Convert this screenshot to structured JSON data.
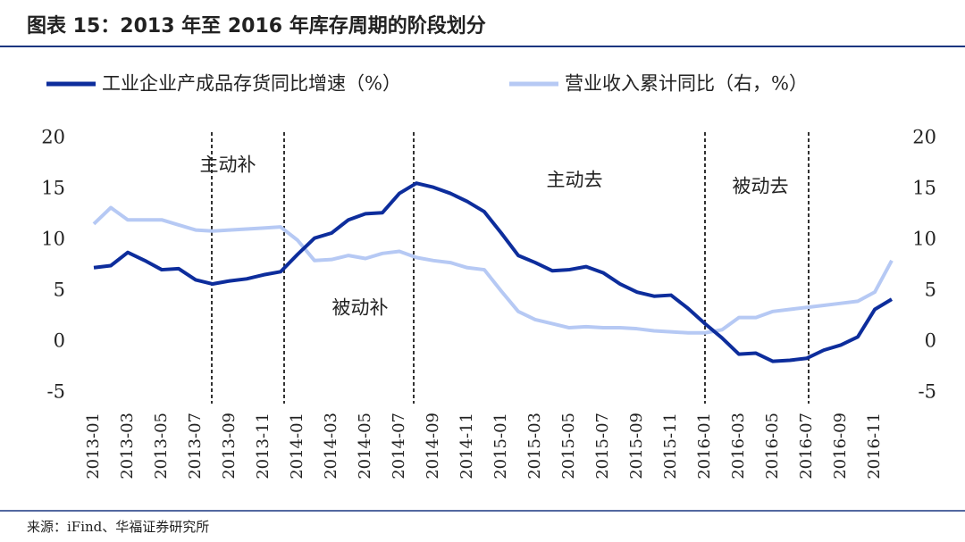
{
  "chart_data": {
    "type": "line",
    "title": "图表 15：2013 年至 2016 年库存周期的阶段划分",
    "source": "来源：iFind、华福证券研究所",
    "annotations": [
      "主动补",
      "被动补",
      "主动去",
      "被动去"
    ],
    "categories": [
      "2013-01",
      null,
      "2013-03",
      null,
      "2013-05",
      null,
      "2013-07",
      null,
      "2013-09",
      null,
      "2013-11",
      null,
      "2014-01",
      null,
      "2014-03",
      null,
      "2014-05",
      null,
      "2014-07",
      null,
      "2014-09",
      null,
      "2014-11",
      null,
      "2015-01",
      null,
      "2015-03",
      null,
      "2015-05",
      null,
      "2015-07",
      null,
      "2015-09",
      null,
      "2015-11",
      null,
      "2016-01",
      null,
      "2016-03",
      null,
      "2016-05",
      null,
      "2016-07",
      null,
      "2016-09",
      null,
      "2016-11",
      null
    ],
    "series": [
      {
        "name": "工业企业产成品存货同比增速（%）",
        "color": "#0d2d9c",
        "values": [
          7.3,
          7.5,
          8.8,
          8.0,
          7.1,
          7.2,
          6.1,
          5.7,
          6.0,
          6.2,
          6.6,
          6.9,
          8.6,
          10.2,
          10.7,
          12.0,
          12.6,
          12.7,
          14.6,
          15.6,
          15.2,
          14.6,
          13.8,
          12.8,
          10.7,
          8.5,
          7.8,
          7.0,
          7.1,
          7.4,
          6.8,
          5.7,
          4.9,
          4.5,
          4.6,
          3.3,
          1.8,
          0.4,
          -1.2,
          -1.1,
          -1.9,
          -1.8,
          -1.6,
          -0.8,
          -0.3,
          0.5,
          3.2,
          4.2
        ]
      },
      {
        "name": "营业收入累计同比（右，%）",
        "color": "#b6c9f4",
        "axis": "y2",
        "values": [
          11.6,
          13.2,
          12.0,
          12.0,
          12.0,
          11.5,
          11.0,
          10.9,
          11.0,
          11.1,
          11.2,
          11.3,
          10.0,
          8.0,
          8.1,
          8.5,
          8.2,
          8.7,
          8.9,
          8.3,
          8.0,
          7.8,
          7.3,
          7.1,
          5.0,
          3.0,
          2.2,
          1.8,
          1.4,
          1.5,
          1.4,
          1.4,
          1.3,
          1.1,
          1.0,
          0.9,
          0.9,
          1.2,
          2.4,
          2.4,
          3.0,
          3.2,
          3.4,
          3.6,
          3.8,
          4.0,
          4.9,
          8.0
        ]
      }
    ],
    "ylim": [
      -5,
      20
    ],
    "yticks": [
      -5,
      0,
      5,
      10,
      15,
      20
    ],
    "y2lim": [
      -5,
      20
    ],
    "y2ticks": [
      -5,
      0,
      5,
      10,
      15,
      20
    ],
    "grid": false
  }
}
